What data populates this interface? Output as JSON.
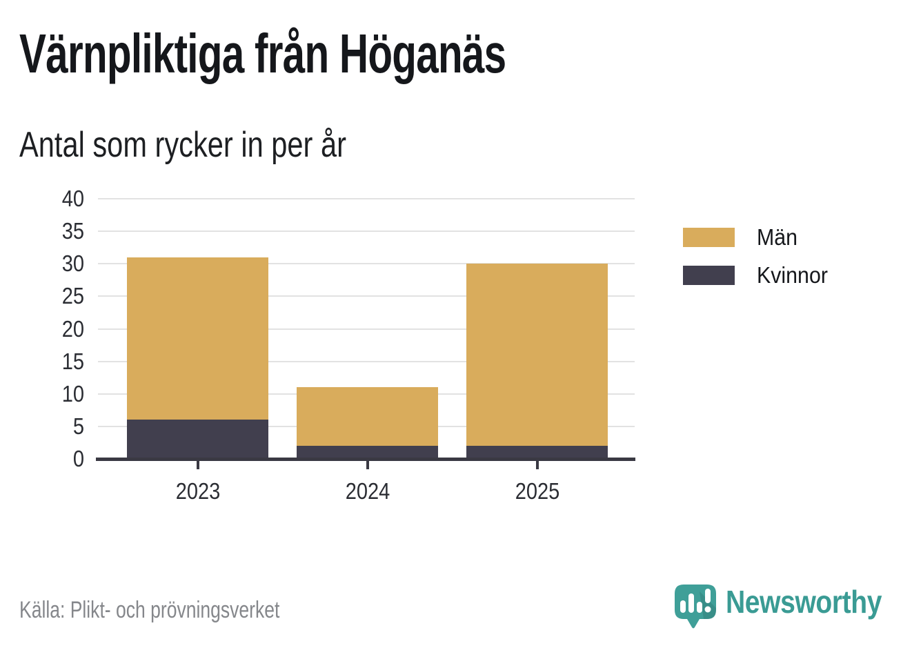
{
  "header": {
    "title": "Värnpliktiga från Höganäs",
    "subtitle": "Antal som rycker in per år"
  },
  "footer": {
    "source": "Källa: Plikt- och prövningsverket",
    "brand": "Newsworthy"
  },
  "colors": {
    "men": "#d9ac5c",
    "women": "#413f4e",
    "axis": "#3a3943",
    "gridline": "#e2e2e2",
    "brand_teal": "#3a9b94",
    "source_gray": "#85878b"
  },
  "chart_data": {
    "type": "bar",
    "stacked": true,
    "title": "Värnpliktiga från Höganäs",
    "subtitle": "Antal som rycker in per år",
    "categories": [
      "2023",
      "2024",
      "2025"
    ],
    "series": [
      {
        "name": "Män",
        "color": "#d9ac5c",
        "values": [
          25,
          9,
          28
        ]
      },
      {
        "name": "Kvinnor",
        "color": "#413f4e",
        "values": [
          6,
          2,
          2
        ]
      }
    ],
    "stacked_totals": [
      31,
      11,
      30
    ],
    "xlabel": "",
    "ylabel": "",
    "ylim": [
      0,
      40
    ],
    "ytick_step": 5,
    "grid": "horizontal",
    "legend_position": "right",
    "legend_entries": [
      "Män",
      "Kvinnor"
    ]
  }
}
